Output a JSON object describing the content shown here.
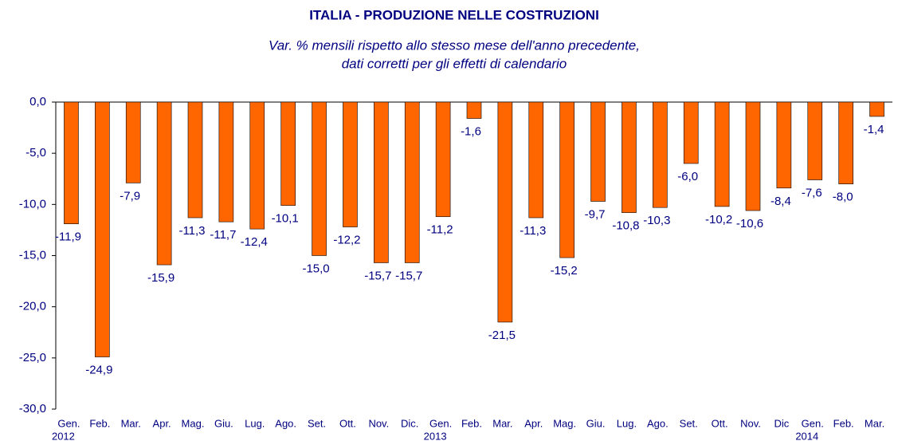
{
  "chart_data": {
    "type": "bar",
    "title": "ITALIA - PRODUZIONE NELLE COSTRUZIONI",
    "subtitle": [
      "Var. % mensili rispetto allo stesso mese dell'anno precedente,",
      "dati corretti per gli effetti di calendario"
    ],
    "categories": [
      "Gen.",
      "Feb.",
      "Mar.",
      "Apr.",
      "Mag.",
      "Giu.",
      "Lug.",
      "Ago.",
      "Set.",
      "Ott.",
      "Nov.",
      "Dic.",
      "Gen.",
      "Feb.",
      "Mar.",
      "Apr.",
      "Mag.",
      "Giu.",
      "Lug.",
      "Ago.",
      "Set.",
      "Ott.",
      "Nov.",
      "Dic",
      "Gen.",
      "Feb.",
      "Mar."
    ],
    "years": [
      "2012",
      null,
      null,
      null,
      null,
      null,
      null,
      null,
      null,
      null,
      null,
      null,
      "2013",
      null,
      null,
      null,
      null,
      null,
      null,
      null,
      null,
      null,
      null,
      null,
      "2014",
      null,
      null
    ],
    "values": [
      -11.9,
      -24.9,
      -7.9,
      -15.9,
      -11.3,
      -11.7,
      -12.4,
      -10.1,
      -15.0,
      -12.2,
      -15.7,
      -15.7,
      -11.2,
      -1.6,
      -21.5,
      -11.3,
      -15.2,
      -9.7,
      -10.8,
      -10.3,
      -6.0,
      -10.2,
      -10.6,
      -8.4,
      -7.6,
      -8.0,
      -1.4
    ],
    "value_labels": [
      "-11,9",
      "-24,9",
      "-7,9",
      "-15,9",
      "-11,3",
      "-11,7",
      "-12,4",
      "-10,1",
      "-15,0",
      "-12,2",
      "-15,7",
      "-15,7",
      "-11,2",
      "-1,6",
      "-21,5",
      "-11,3",
      "-15,2",
      "-9,7",
      "-10,8",
      "-10,3",
      "-6,0",
      "-10,2",
      "-10,6",
      "-8,4",
      "-7,6",
      "-8,0",
      "-1,4"
    ],
    "color": "#ff6600",
    "ylim": [
      -30,
      0
    ],
    "yticks": [
      {
        "value": 0,
        "label": "0,0"
      },
      {
        "value": -5,
        "label": "-5,0"
      },
      {
        "value": -10,
        "label": "-10,0"
      },
      {
        "value": -15,
        "label": "-15,0"
      },
      {
        "value": -20,
        "label": "-20,0"
      },
      {
        "value": -25,
        "label": "-25,0"
      },
      {
        "value": -30,
        "label": "-30,0"
      }
    ],
    "grid": false
  }
}
